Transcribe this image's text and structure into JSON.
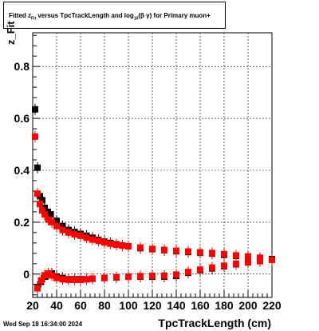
{
  "title": {
    "pre": "Fitted  z",
    "sub1": "Fit",
    "mid": "   versus TpcTrackLength and log",
    "sub2": "10",
    "post": "(β   γ) for Primary muon+"
  },
  "datestamp": "Wed Sep 18 16:34:00 2024",
  "chart_data": {
    "type": "scatter",
    "xlabel": "TpcTrackLength (cm)",
    "ylabel": "z_Fit",
    "xlim": [
      20,
      220
    ],
    "ylim": [
      -0.09,
      0.93
    ],
    "xticks": [
      20,
      40,
      60,
      80,
      100,
      120,
      140,
      160,
      180,
      200,
      220
    ],
    "yticks": [
      0,
      0.2,
      0.4,
      0.6,
      0.8
    ],
    "ytick_labels": [
      "0",
      "0.2",
      "0.4",
      "0.6",
      "0.8"
    ],
    "grid": true,
    "series": [
      {
        "color": "#000000",
        "points": [
          [
            22,
            0.635
          ],
          [
            24,
            0.41
          ],
          [
            26,
            0.3
          ],
          [
            28,
            0.285
          ],
          [
            30,
            0.255
          ],
          [
            32,
            0.24
          ],
          [
            35,
            0.23
          ],
          [
            40,
            0.205
          ],
          [
            45,
            0.185
          ],
          [
            50,
            0.17
          ],
          [
            55,
            0.162
          ],
          [
            60,
            0.155
          ],
          [
            65,
            0.148
          ],
          [
            70,
            0.14
          ],
          [
            75,
            0.132
          ],
          [
            80,
            0.125
          ],
          [
            85,
            0.12
          ],
          [
            90,
            0.115
          ],
          [
            95,
            0.11
          ],
          [
            100,
            0.107
          ],
          [
            110,
            0.1
          ],
          [
            120,
            0.096
          ],
          [
            130,
            0.092
          ],
          [
            140,
            0.088
          ],
          [
            150,
            0.085
          ],
          [
            160,
            0.082
          ],
          [
            170,
            0.079
          ],
          [
            180,
            0.074
          ],
          [
            190,
            0.07
          ],
          [
            200,
            0.066
          ],
          [
            210,
            0.062
          ],
          [
            220,
            0.058
          ]
        ]
      },
      {
        "color": "#000000",
        "points": [
          [
            24,
            -0.05
          ],
          [
            27,
            -0.03
          ],
          [
            30,
            -0.01
          ],
          [
            33,
            0.0
          ],
          [
            36,
            0.002
          ],
          [
            40,
            -0.01
          ],
          [
            45,
            -0.015
          ],
          [
            50,
            -0.02
          ],
          [
            55,
            -0.02
          ],
          [
            60,
            -0.02
          ],
          [
            65,
            -0.02
          ],
          [
            70,
            -0.018
          ],
          [
            80,
            -0.015
          ],
          [
            90,
            -0.013
          ],
          [
            100,
            -0.01
          ],
          [
            110,
            -0.01
          ],
          [
            120,
            -0.01
          ],
          [
            130,
            -0.01
          ],
          [
            140,
            -0.007
          ],
          [
            150,
            0.005
          ],
          [
            160,
            0.015
          ],
          [
            170,
            0.022
          ],
          [
            180,
            0.03
          ],
          [
            190,
            0.038
          ],
          [
            200,
            0.045
          ],
          [
            210,
            0.05
          ],
          [
            220,
            0.055
          ]
        ]
      },
      {
        "color": "#ff0000",
        "points": [
          [
            22,
            0.53
          ],
          [
            24,
            0.31
          ],
          [
            26,
            0.27
          ],
          [
            28,
            0.245
          ],
          [
            30,
            0.23
          ],
          [
            33,
            0.21
          ],
          [
            36,
            0.2
          ],
          [
            40,
            0.185
          ],
          [
            45,
            0.17
          ],
          [
            50,
            0.16
          ],
          [
            55,
            0.153
          ],
          [
            60,
            0.148
          ],
          [
            65,
            0.14
          ],
          [
            70,
            0.133
          ],
          [
            75,
            0.128
          ],
          [
            80,
            0.122
          ],
          [
            85,
            0.117
          ],
          [
            90,
            0.113
          ],
          [
            95,
            0.11
          ],
          [
            100,
            0.107
          ],
          [
            110,
            0.102
          ],
          [
            120,
            0.097
          ],
          [
            130,
            0.093
          ],
          [
            140,
            0.09
          ],
          [
            150,
            0.087
          ],
          [
            160,
            0.084
          ],
          [
            170,
            0.081
          ],
          [
            180,
            0.077
          ],
          [
            190,
            0.072
          ],
          [
            200,
            0.068
          ],
          [
            210,
            0.063
          ],
          [
            220,
            0.055
          ]
        ]
      },
      {
        "color": "#ff0000",
        "points": [
          [
            24,
            -0.055
          ],
          [
            27,
            -0.025
          ],
          [
            30,
            -0.005
          ],
          [
            33,
            0.002
          ],
          [
            36,
            -0.005
          ],
          [
            40,
            -0.015
          ],
          [
            45,
            -0.02
          ],
          [
            50,
            -0.022
          ],
          [
            55,
            -0.022
          ],
          [
            60,
            -0.022
          ],
          [
            65,
            -0.02
          ],
          [
            70,
            -0.018
          ],
          [
            80,
            -0.015
          ],
          [
            90,
            -0.012
          ],
          [
            100,
            -0.01
          ],
          [
            110,
            -0.008
          ],
          [
            120,
            -0.007
          ],
          [
            130,
            -0.006
          ],
          [
            140,
            -0.002
          ],
          [
            150,
            0.008
          ],
          [
            160,
            0.017
          ],
          [
            170,
            0.025
          ],
          [
            180,
            0.032
          ],
          [
            190,
            0.04
          ],
          [
            200,
            0.046
          ],
          [
            210,
            0.05
          ],
          [
            220,
            0.055
          ]
        ]
      }
    ]
  }
}
